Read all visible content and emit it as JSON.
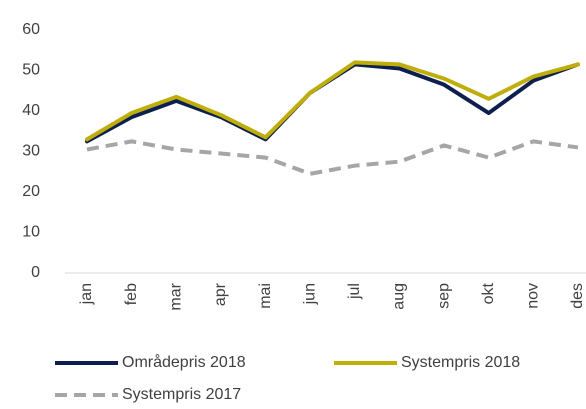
{
  "chart_data": {
    "type": "line",
    "categories": [
      "jan",
      "feb",
      "mar",
      "apr",
      "mai",
      "jun",
      "jul",
      "aug",
      "sep",
      "okt",
      "nov",
      "des"
    ],
    "series": [
      {
        "name": "Områdepris 2018",
        "color": "#0d1f4f",
        "values": [
          32.5,
          38.5,
          42.5,
          38.5,
          33,
          44.5,
          51.5,
          50.5,
          46.5,
          39.5,
          47.5,
          51.5
        ]
      },
      {
        "name": "Systempris 2018",
        "color": "#bfae0a",
        "values": [
          33,
          39.5,
          43.5,
          39,
          33.5,
          44.5,
          52,
          51.5,
          48,
          43,
          48.5,
          51.5
        ]
      },
      {
        "name": "Systempris 2017",
        "color": "#a6a6a6",
        "dashed": true,
        "values": [
          30.5,
          32.5,
          30.5,
          29.5,
          28.5,
          24.5,
          26.5,
          27.5,
          31.5,
          28.5,
          32.5,
          31
        ]
      }
    ],
    "ylim": [
      0,
      60
    ],
    "yticks": [
      0,
      10,
      20,
      30,
      40,
      50,
      60
    ],
    "grid": false,
    "legend": "bottom"
  }
}
